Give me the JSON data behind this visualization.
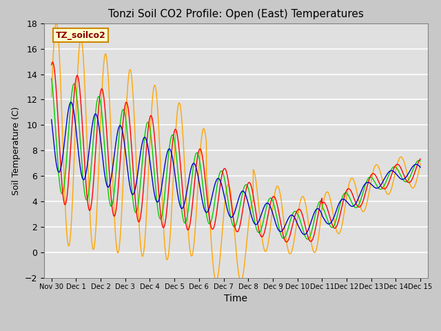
{
  "title": "Tonzi Soil CO2 Profile: Open (East) Temperatures",
  "xlabel": "Time",
  "ylabel": "Soil Temperature (C)",
  "ylim": [
    -2,
    18
  ],
  "yticks": [
    -2,
    0,
    2,
    4,
    6,
    8,
    10,
    12,
    14,
    16,
    18
  ],
  "colors": {
    "-2cm": "#ff0000",
    "-4cm": "#ffa500",
    "-8cm": "#00cc00",
    "-16cm": "#0000cc"
  },
  "legend_label": "TZ_soilco2",
  "bg_color": "#e0e0e0",
  "xtick_labels": [
    "Nov 30",
    "Dec 1",
    "Dec 2",
    "Dec 3",
    "Dec 4",
    "Dec 5",
    "Dec 6",
    "Dec 7",
    "Dec 8",
    "Dec 9",
    "Dec 10",
    "Dec 11",
    "Dec 12",
    "Dec 13",
    "Dec 14",
    "Dec 15"
  ]
}
